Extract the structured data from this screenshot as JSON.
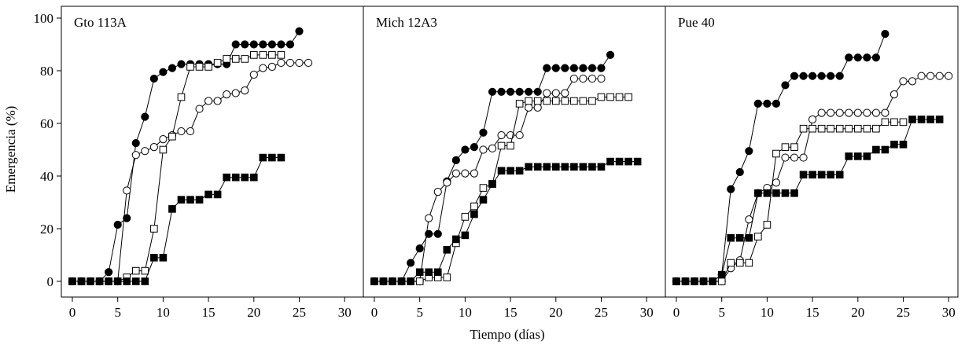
{
  "figure": {
    "ylabel": "Emergencia (%)",
    "xlabel": "Tiempo (días)"
  },
  "chart_data": [
    {
      "type": "line",
      "title": "Gto 113A",
      "xlim": [
        -1,
        32
      ],
      "ylim": [
        -5,
        100
      ],
      "xticks": [
        0,
        5,
        10,
        15,
        20,
        25,
        30
      ],
      "yticks": [
        0,
        20,
        40,
        60,
        80,
        100
      ],
      "series": [
        {
          "marker": "circle-filled",
          "x": [
            0,
            1,
            2,
            3,
            4,
            5,
            6,
            7,
            8,
            9,
            10,
            11,
            12,
            13,
            14,
            15,
            16,
            17,
            18,
            19,
            20,
            21,
            22,
            23,
            24,
            25
          ],
          "y": [
            0,
            0,
            0,
            0,
            3.5,
            21.5,
            24,
            52.5,
            62.5,
            77,
            79.5,
            81,
            82.5,
            82.5,
            82.5,
            82.5,
            82.5,
            82.5,
            90,
            90,
            90,
            90,
            90,
            90,
            90,
            95
          ]
        },
        {
          "marker": "circle-open",
          "x": [
            0,
            1,
            2,
            3,
            4,
            5,
            6,
            7,
            8,
            9,
            10,
            11,
            12,
            13,
            14,
            15,
            16,
            17,
            18,
            19,
            20,
            21,
            22,
            23,
            24,
            25,
            26
          ],
          "y": [
            0,
            0,
            0,
            0,
            0,
            0,
            34.5,
            48,
            49.5,
            51,
            54,
            55.5,
            57,
            57,
            65.5,
            68.5,
            68.5,
            71,
            71.5,
            72.5,
            78.5,
            81,
            81.5,
            83,
            83,
            83,
            83
          ]
        },
        {
          "marker": "square-open",
          "x": [
            0,
            1,
            2,
            3,
            4,
            5,
            6,
            7,
            8,
            9,
            10,
            11,
            12,
            13,
            14,
            15,
            16,
            17,
            18,
            19,
            20,
            21,
            22,
            23
          ],
          "y": [
            0,
            0,
            0,
            0,
            0,
            0,
            1.5,
            4,
            4,
            20,
            50,
            55,
            70,
            81.5,
            81.5,
            81.5,
            83,
            84.5,
            84.5,
            84.5,
            86,
            86,
            86,
            86
          ]
        },
        {
          "marker": "square-filled",
          "x": [
            0,
            1,
            2,
            3,
            4,
            5,
            6,
            7,
            8,
            9,
            10,
            11,
            12,
            13,
            14,
            15,
            16,
            17,
            18,
            19,
            20,
            21,
            22,
            23
          ],
          "y": [
            0,
            0,
            0,
            0,
            0,
            0,
            0,
            0,
            0,
            9,
            9,
            27.5,
            31,
            31,
            31,
            33,
            33,
            39.5,
            39.5,
            39.5,
            39.5,
            47,
            47,
            47
          ]
        }
      ]
    },
    {
      "type": "line",
      "title": "Mich 12A3",
      "xlim": [
        -1,
        32
      ],
      "ylim": [
        -5,
        100
      ],
      "xticks": [
        0,
        5,
        10,
        15,
        20,
        25,
        30
      ],
      "series": [
        {
          "marker": "circle-filled",
          "x": [
            0,
            1,
            2,
            3,
            4,
            5,
            6,
            7,
            8,
            9,
            10,
            11,
            12,
            13,
            14,
            15,
            16,
            17,
            18,
            19,
            20,
            21,
            22,
            23,
            24,
            25,
            26
          ],
          "y": [
            0,
            0,
            0,
            0,
            7,
            12.5,
            18,
            18,
            38,
            46,
            50,
            51,
            56.5,
            72,
            72,
            72,
            72,
            72,
            72,
            81,
            81,
            81,
            81,
            81,
            81,
            81,
            86
          ]
        },
        {
          "marker": "circle-open",
          "x": [
            0,
            1,
            2,
            3,
            4,
            5,
            6,
            7,
            8,
            9,
            10,
            11,
            12,
            13,
            14,
            15,
            16,
            17,
            18,
            19,
            20,
            21,
            22,
            23,
            24,
            25
          ],
          "y": [
            0,
            0,
            0,
            0,
            0,
            0,
            24,
            34,
            37.5,
            41,
            41,
            41,
            50,
            50.5,
            55.5,
            55.5,
            55.5,
            66,
            66,
            71.5,
            71.5,
            71.5,
            77,
            77,
            77,
            77
          ]
        },
        {
          "marker": "square-open",
          "x": [
            0,
            1,
            2,
            3,
            4,
            5,
            6,
            7,
            8,
            9,
            10,
            11,
            12,
            13,
            14,
            15,
            16,
            17,
            18,
            19,
            20,
            21,
            22,
            23,
            24,
            25,
            26,
            27,
            28
          ],
          "y": [
            0,
            0,
            0,
            0,
            0,
            0,
            1.5,
            1.5,
            1.5,
            14.5,
            24.5,
            28.5,
            35.5,
            37,
            51.5,
            51.5,
            67.5,
            68.5,
            68.5,
            68.5,
            68.5,
            68.5,
            68.5,
            68.5,
            68.5,
            70,
            70,
            70,
            70
          ]
        },
        {
          "marker": "square-filled",
          "x": [
            0,
            1,
            2,
            3,
            4,
            5,
            6,
            7,
            8,
            9,
            10,
            11,
            12,
            13,
            14,
            15,
            16,
            17,
            18,
            19,
            20,
            21,
            22,
            23,
            24,
            25,
            26,
            27,
            28,
            29
          ],
          "y": [
            0,
            0,
            0,
            0,
            0,
            3.5,
            3.5,
            3.5,
            12,
            16,
            17.5,
            25.5,
            31,
            37,
            42,
            42,
            42,
            43.5,
            43.5,
            43.5,
            43.5,
            43.5,
            43.5,
            43.5,
            43.5,
            43.5,
            45.5,
            45.5,
            45.5,
            45.5
          ]
        }
      ]
    },
    {
      "type": "line",
      "title": "Pue 40",
      "xlim": [
        -1,
        32
      ],
      "ylim": [
        -5,
        100
      ],
      "xticks": [
        0,
        5,
        10,
        15,
        20,
        25,
        30
      ],
      "series": [
        {
          "marker": "circle-filled",
          "x": [
            0,
            1,
            2,
            3,
            4,
            5,
            6,
            7,
            8,
            9,
            10,
            11,
            12,
            13,
            14,
            15,
            16,
            17,
            18,
            19,
            20,
            21,
            22,
            23
          ],
          "y": [
            0,
            0,
            0,
            0,
            0,
            2.5,
            35,
            41.5,
            49.5,
            67.5,
            67.5,
            67.5,
            74.5,
            78,
            78,
            78,
            78,
            78,
            78,
            85,
            85,
            85,
            85,
            94
          ]
        },
        {
          "marker": "circle-open",
          "x": [
            0,
            1,
            2,
            3,
            4,
            5,
            6,
            7,
            8,
            9,
            10,
            11,
            12,
            13,
            14,
            15,
            16,
            17,
            18,
            19,
            20,
            21,
            22,
            23,
            24,
            25,
            26,
            27,
            28,
            29,
            30
          ],
          "y": [
            0,
            0,
            0,
            0,
            0,
            0,
            5,
            8,
            23.5,
            33.5,
            35.5,
            37.5,
            47,
            47,
            47,
            61.5,
            64,
            64,
            64,
            64,
            64,
            64,
            64,
            64,
            71,
            76,
            76,
            78,
            78,
            78,
            78
          ]
        },
        {
          "marker": "square-open",
          "x": [
            0,
            1,
            2,
            3,
            4,
            5,
            6,
            7,
            8,
            9,
            10,
            11,
            12,
            13,
            14,
            15,
            16,
            17,
            18,
            19,
            20,
            21,
            22,
            23,
            24,
            25
          ],
          "y": [
            0,
            0,
            0,
            0,
            0,
            0,
            7,
            7,
            7,
            17,
            21.5,
            48.5,
            51,
            51,
            58,
            58,
            58,
            58,
            58,
            58,
            58,
            58,
            58,
            60.5,
            60.5,
            60.5
          ]
        },
        {
          "marker": "square-filled",
          "x": [
            0,
            1,
            2,
            3,
            4,
            5,
            6,
            7,
            8,
            9,
            10,
            11,
            12,
            13,
            14,
            15,
            16,
            17,
            18,
            19,
            20,
            21,
            22,
            23,
            24,
            25,
            26,
            27,
            28,
            29
          ],
          "y": [
            0,
            0,
            0,
            0,
            0,
            2.5,
            16.5,
            16.5,
            16.5,
            33.5,
            33.5,
            33.5,
            33.5,
            33.5,
            40.5,
            40.5,
            40.5,
            40.5,
            40.5,
            47.5,
            47.5,
            47.5,
            50,
            50,
            52,
            52,
            61.5,
            61.5,
            61.5,
            61.5
          ]
        }
      ]
    }
  ]
}
